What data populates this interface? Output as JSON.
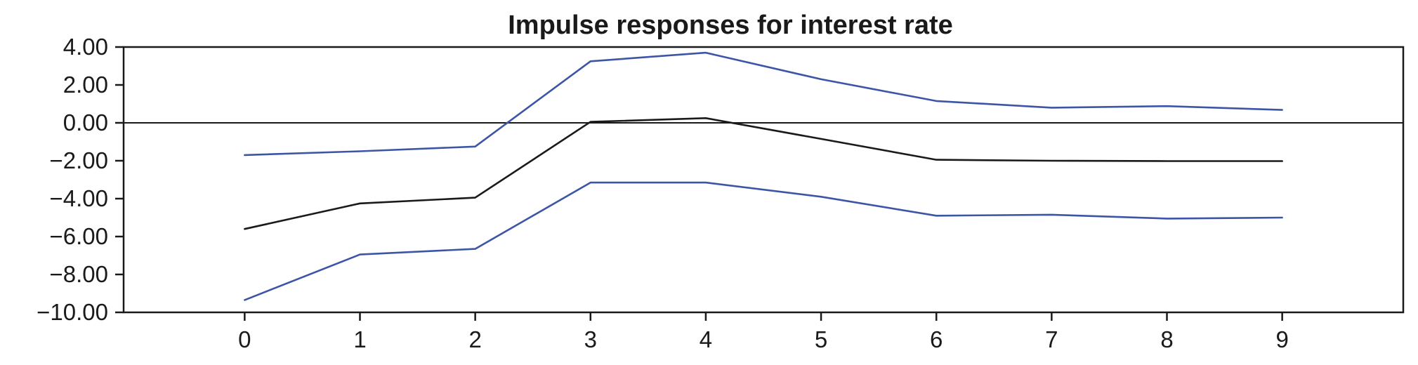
{
  "chart_data": {
    "type": "line",
    "title": "Impulse responses for interest rate",
    "xlabel": "",
    "ylabel": "",
    "x": [
      0,
      1,
      2,
      3,
      4,
      5,
      6,
      7,
      8,
      9
    ],
    "xlim": [
      -1.05,
      10.05
    ],
    "ylim": [
      -10,
      4
    ],
    "x_tick_labels": [
      "0",
      "1",
      "2",
      "3",
      "4",
      "5",
      "6",
      "7",
      "8",
      "9"
    ],
    "y_ticks": [
      4,
      2,
      0,
      -2,
      -4,
      -6,
      -8,
      -10
    ],
    "y_tick_labels": [
      "4.00",
      "2.00",
      "0.00",
      "−2.00",
      "−4.00",
      "−6.00",
      "−8.00",
      "−10.00"
    ],
    "grid": false,
    "zero_line": true,
    "series": [
      {
        "color": "#3d55a6",
        "values": [
          -1.7,
          -1.5,
          -1.25,
          3.25,
          3.7,
          2.3,
          1.15,
          0.8,
          0.88,
          0.68
        ]
      },
      {
        "color": "#1a1a1a",
        "values": [
          -5.6,
          -4.25,
          -3.95,
          0.05,
          0.25,
          -0.85,
          -1.95,
          -2.0,
          -2.02,
          -2.02
        ]
      },
      {
        "color": "#3d55a6",
        "values": [
          -9.35,
          -6.95,
          -6.65,
          -3.15,
          -3.15,
          -3.9,
          -4.9,
          -4.85,
          -5.05,
          -5.0
        ]
      }
    ]
  }
}
